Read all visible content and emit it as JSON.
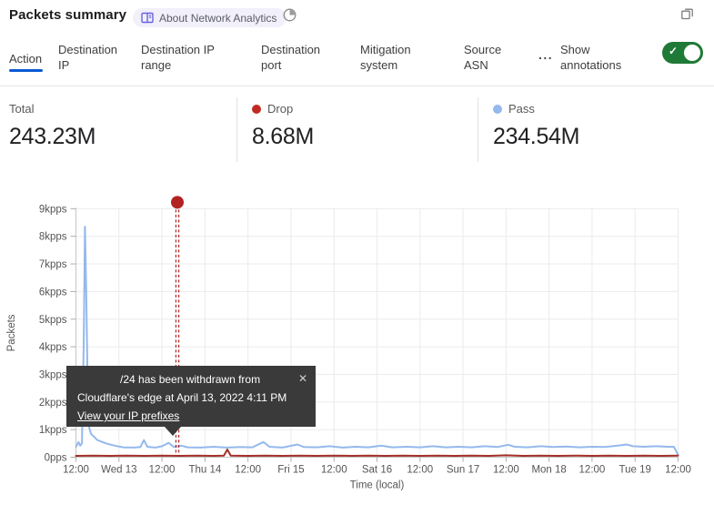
{
  "header": {
    "title": "Packets summary",
    "about_badge": "About Network Analytics"
  },
  "tabs": {
    "items": [
      {
        "label": "Action",
        "active": true
      },
      {
        "label": "Destination IP",
        "active": false
      },
      {
        "label": "Destination IP range",
        "active": false
      },
      {
        "label": "Destination port",
        "active": false
      },
      {
        "label": "Mitigation system",
        "active": false
      },
      {
        "label": "Source ASN",
        "active": false
      }
    ],
    "more_label": "...",
    "annotations_label": "Show annotations",
    "annotations_toggle_on": true,
    "accent_color": "#0a5bd3",
    "toggle_color": "#1e7a36"
  },
  "stats": {
    "total": {
      "label": "Total",
      "value": "243.23M"
    },
    "drop": {
      "label": "Drop",
      "value": "8.68M",
      "dot_color": "#c22a21"
    },
    "pass": {
      "label": "Pass",
      "value": "234.54M",
      "dot_color": "#94b9ec"
    }
  },
  "chart_data": {
    "type": "line",
    "xlabel": "Time (local)",
    "ylabel": "Packets",
    "x_ticks": [
      "12:00",
      "Wed 13",
      "12:00",
      "Thu 14",
      "12:00",
      "Fri 15",
      "12:00",
      "Sat 16",
      "12:00",
      "Sun 17",
      "12:00",
      "Mon 18",
      "12:00",
      "Tue 19",
      "12:00"
    ],
    "y_ticks": [
      "0pps",
      "1kpps",
      "2kpps",
      "3kpps",
      "4kpps",
      "5kpps",
      "6kpps",
      "7kpps",
      "8kpps",
      "9kpps"
    ],
    "ylim": [
      0,
      9
    ],
    "grid": true,
    "series": [
      {
        "name": "Pass",
        "color": "#94b9ec",
        "points": [
          [
            0,
            0.38
          ],
          [
            0.06,
            0.55
          ],
          [
            0.1,
            0.42
          ],
          [
            0.14,
            0.5
          ],
          [
            0.18,
            4.0
          ],
          [
            0.21,
            8.35
          ],
          [
            0.24,
            6.0
          ],
          [
            0.285,
            1.2
          ],
          [
            0.35,
            0.85
          ],
          [
            0.5,
            0.62
          ],
          [
            0.7,
            0.5
          ],
          [
            0.9,
            0.42
          ],
          [
            1.1,
            0.36
          ],
          [
            1.35,
            0.35
          ],
          [
            1.5,
            0.37
          ],
          [
            1.58,
            0.62
          ],
          [
            1.66,
            0.38
          ],
          [
            1.85,
            0.35
          ],
          [
            2.0,
            0.4
          ],
          [
            2.15,
            0.52
          ],
          [
            2.28,
            0.37
          ],
          [
            2.45,
            0.42
          ],
          [
            2.6,
            0.36
          ],
          [
            2.9,
            0.35
          ],
          [
            3.2,
            0.38
          ],
          [
            3.5,
            0.35
          ],
          [
            3.8,
            0.37
          ],
          [
            4.1,
            0.36
          ],
          [
            4.36,
            0.55
          ],
          [
            4.5,
            0.38
          ],
          [
            4.8,
            0.35
          ],
          [
            5.15,
            0.46
          ],
          [
            5.3,
            0.37
          ],
          [
            5.6,
            0.36
          ],
          [
            5.9,
            0.4
          ],
          [
            6.2,
            0.35
          ],
          [
            6.5,
            0.38
          ],
          [
            6.8,
            0.36
          ],
          [
            7.1,
            0.42
          ],
          [
            7.35,
            0.36
          ],
          [
            7.7,
            0.38
          ],
          [
            8.0,
            0.36
          ],
          [
            8.3,
            0.4
          ],
          [
            8.6,
            0.36
          ],
          [
            8.9,
            0.38
          ],
          [
            9.2,
            0.36
          ],
          [
            9.5,
            0.4
          ],
          [
            9.8,
            0.37
          ],
          [
            10.05,
            0.45
          ],
          [
            10.2,
            0.38
          ],
          [
            10.5,
            0.36
          ],
          [
            10.8,
            0.4
          ],
          [
            11.1,
            0.37
          ],
          [
            11.4,
            0.39
          ],
          [
            11.7,
            0.36
          ],
          [
            12.0,
            0.38
          ],
          [
            12.3,
            0.37
          ],
          [
            12.6,
            0.42
          ],
          [
            12.8,
            0.46
          ],
          [
            12.95,
            0.4
          ],
          [
            13.2,
            0.38
          ],
          [
            13.5,
            0.4
          ],
          [
            13.75,
            0.38
          ],
          [
            13.9,
            0.38
          ],
          [
            13.97,
            0.18
          ],
          [
            14,
            0.1
          ]
        ]
      },
      {
        "name": "Drop",
        "color": "#a32e27",
        "points": [
          [
            0,
            0.05
          ],
          [
            0.4,
            0.06
          ],
          [
            0.8,
            0.05
          ],
          [
            1.2,
            0.06
          ],
          [
            1.6,
            0.05
          ],
          [
            2.0,
            0.06
          ],
          [
            2.4,
            0.05
          ],
          [
            2.8,
            0.06
          ],
          [
            3.2,
            0.05
          ],
          [
            3.44,
            0.06
          ],
          [
            3.52,
            0.28
          ],
          [
            3.6,
            0.06
          ],
          [
            4.0,
            0.05
          ],
          [
            4.4,
            0.06
          ],
          [
            4.8,
            0.05
          ],
          [
            5.2,
            0.06
          ],
          [
            5.6,
            0.05
          ],
          [
            6.0,
            0.06
          ],
          [
            6.4,
            0.05
          ],
          [
            6.8,
            0.06
          ],
          [
            7.2,
            0.05
          ],
          [
            7.6,
            0.06
          ],
          [
            8.0,
            0.05
          ],
          [
            8.4,
            0.06
          ],
          [
            8.8,
            0.05
          ],
          [
            9.2,
            0.06
          ],
          [
            9.6,
            0.05
          ],
          [
            10.0,
            0.07
          ],
          [
            10.4,
            0.05
          ],
          [
            10.8,
            0.06
          ],
          [
            11.2,
            0.05
          ],
          [
            11.6,
            0.06
          ],
          [
            12.0,
            0.05
          ],
          [
            12.4,
            0.06
          ],
          [
            12.8,
            0.05
          ],
          [
            13.2,
            0.06
          ],
          [
            13.6,
            0.05
          ],
          [
            14,
            0.06
          ]
        ]
      }
    ],
    "annotation": {
      "t": 2.358,
      "color": "#b22525",
      "tooltip": {
        "line1": "/24 has been withdrawn from",
        "line2": "Cloudflare's edge at April 13, 2022 4:11 PM",
        "link": "View your IP prefixes"
      }
    }
  }
}
